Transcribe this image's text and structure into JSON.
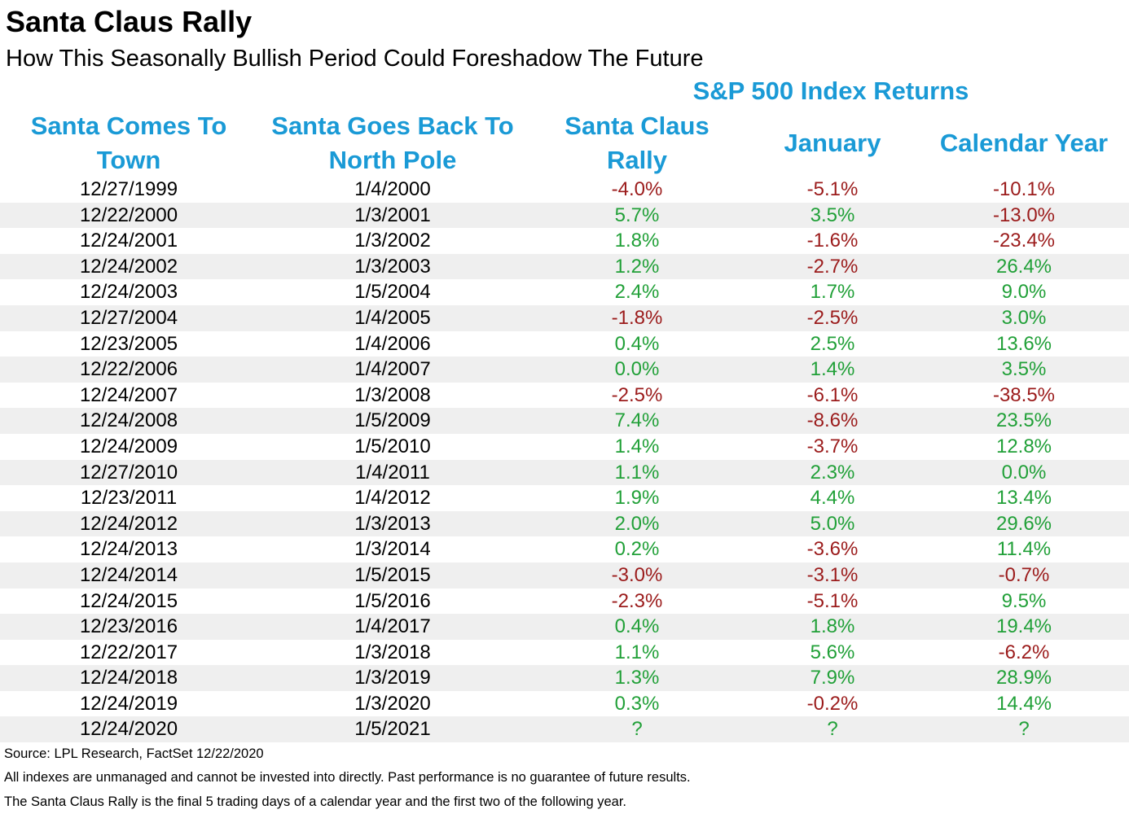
{
  "title": "Santa Claus Rally",
  "subtitle": "How This Seasonally Bullish Period Could Foreshadow The Future",
  "colors": {
    "header": "#1a9ad6",
    "positive": "#21a038",
    "negative": "#9b1b1b",
    "row_alt": "#efefef"
  },
  "chart_data": {
    "type": "table",
    "group_header": "S&P 500 Index Returns",
    "columns": [
      [
        "Santa Comes To",
        "Town"
      ],
      [
        "Santa Goes Back To",
        "North Pole"
      ],
      [
        "Santa Claus",
        "Rally"
      ],
      [
        "January"
      ],
      [
        "Calendar Year"
      ]
    ],
    "rows": [
      [
        "12/27/1999",
        "1/4/2000",
        "-4.0%",
        "-5.1%",
        "-10.1%"
      ],
      [
        "12/22/2000",
        "1/3/2001",
        "5.7%",
        "3.5%",
        "-13.0%"
      ],
      [
        "12/24/2001",
        "1/3/2002",
        "1.8%",
        "-1.6%",
        "-23.4%"
      ],
      [
        "12/24/2002",
        "1/3/2003",
        "1.2%",
        "-2.7%",
        "26.4%"
      ],
      [
        "12/24/2003",
        "1/5/2004",
        "2.4%",
        "1.7%",
        "9.0%"
      ],
      [
        "12/27/2004",
        "1/4/2005",
        "-1.8%",
        "-2.5%",
        "3.0%"
      ],
      [
        "12/23/2005",
        "1/4/2006",
        "0.4%",
        "2.5%",
        "13.6%"
      ],
      [
        "12/22/2006",
        "1/4/2007",
        "0.0%",
        "1.4%",
        "3.5%"
      ],
      [
        "12/24/2007",
        "1/3/2008",
        "-2.5%",
        "-6.1%",
        "-38.5%"
      ],
      [
        "12/24/2008",
        "1/5/2009",
        "7.4%",
        "-8.6%",
        "23.5%"
      ],
      [
        "12/24/2009",
        "1/5/2010",
        "1.4%",
        "-3.7%",
        "12.8%"
      ],
      [
        "12/27/2010",
        "1/4/2011",
        "1.1%",
        "2.3%",
        "0.0%"
      ],
      [
        "12/23/2011",
        "1/4/2012",
        "1.9%",
        "4.4%",
        "13.4%"
      ],
      [
        "12/24/2012",
        "1/3/2013",
        "2.0%",
        "5.0%",
        "29.6%"
      ],
      [
        "12/24/2013",
        "1/3/2014",
        "0.2%",
        "-3.6%",
        "11.4%"
      ],
      [
        "12/24/2014",
        "1/5/2015",
        "-3.0%",
        "-3.1%",
        "-0.7%"
      ],
      [
        "12/24/2015",
        "1/5/2016",
        "-2.3%",
        "-5.1%",
        "9.5%"
      ],
      [
        "12/23/2016",
        "1/4/2017",
        "0.4%",
        "1.8%",
        "19.4%"
      ],
      [
        "12/22/2017",
        "1/3/2018",
        "1.1%",
        "5.6%",
        "-6.2%"
      ],
      [
        "12/24/2018",
        "1/3/2019",
        "1.3%",
        "7.9%",
        "28.9%"
      ],
      [
        "12/24/2019",
        "1/3/2020",
        "0.3%",
        "-0.2%",
        "14.4%"
      ],
      [
        "12/24/2020",
        "1/5/2021",
        "?",
        "?",
        "?"
      ]
    ]
  },
  "footnotes": {
    "source": "Source: LPL Research, FactSet 12/22/2020",
    "disclaimer": "All indexes are unmanaged and cannot be invested into directly. Past performance is no guarantee of future results.",
    "definition": "The Santa Claus Rally is the final 5 trading days of a calendar year and the first two of the following year."
  }
}
